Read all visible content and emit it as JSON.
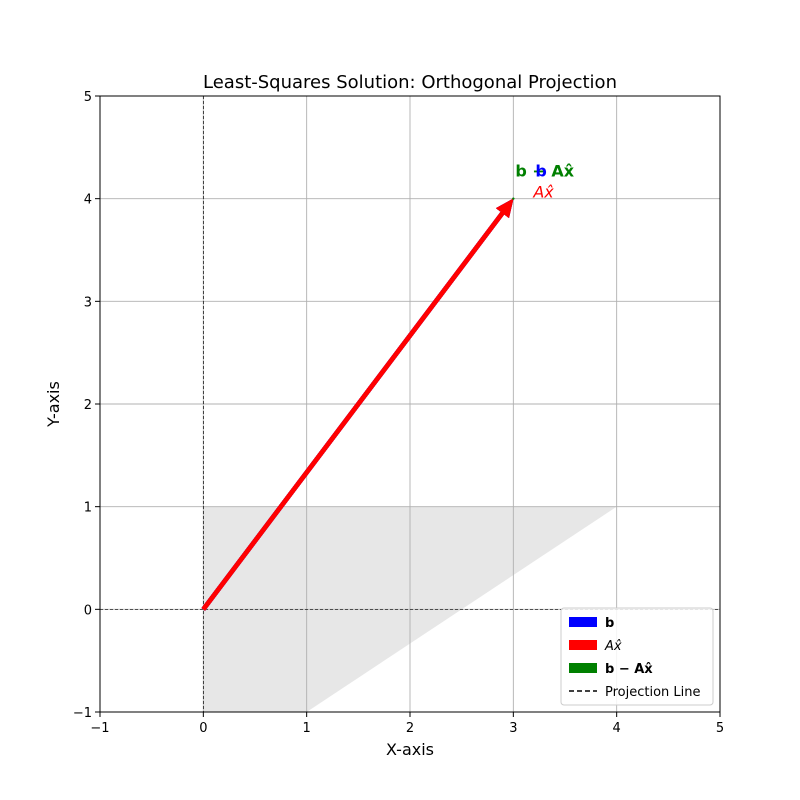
{
  "chart_data": {
    "type": "line",
    "title": "Least-Squares Solution: Orthogonal Projection",
    "xlabel": "X-axis",
    "ylabel": "Y-axis",
    "xlim": [
      -1,
      5
    ],
    "ylim": [
      -1,
      5
    ],
    "xticks": [
      "−1",
      "0",
      "1",
      "2",
      "3",
      "4",
      "5"
    ],
    "yticks": [
      "−1",
      "0",
      "1",
      "2",
      "3",
      "4",
      "5"
    ],
    "grid": true,
    "legend_position": "lower-right",
    "subspace_polygon": [
      [
        0,
        1
      ],
      [
        4,
        1
      ],
      [
        1,
        -1
      ],
      [
        0,
        -1
      ]
    ],
    "vectors": [
      {
        "name": "b",
        "label_text": "b",
        "from": [
          0,
          0
        ],
        "to": [
          3,
          4
        ],
        "color": "#0000ff"
      },
      {
        "name": "A x-hat",
        "label_text": "Ax̂",
        "from": [
          0,
          0
        ],
        "to": [
          3,
          4
        ],
        "color": "#ff0000"
      },
      {
        "name": "b - A x-hat",
        "label_text": "b − Ax̂",
        "from": [
          3,
          4
        ],
        "to": [
          3,
          4
        ],
        "color": "#008000"
      }
    ],
    "reference_lines": {
      "x": 0,
      "y": 0,
      "style": "dashed"
    },
    "legend": [
      {
        "label": "b",
        "color": "#0000ff",
        "kind": "patch"
      },
      {
        "label": "Ax̂",
        "color": "#ff0000",
        "kind": "patch"
      },
      {
        "label": "b − Ax̂",
        "color": "#008000",
        "kind": "patch"
      },
      {
        "label": "Projection Line",
        "color": "#000000",
        "kind": "dashed"
      }
    ]
  }
}
